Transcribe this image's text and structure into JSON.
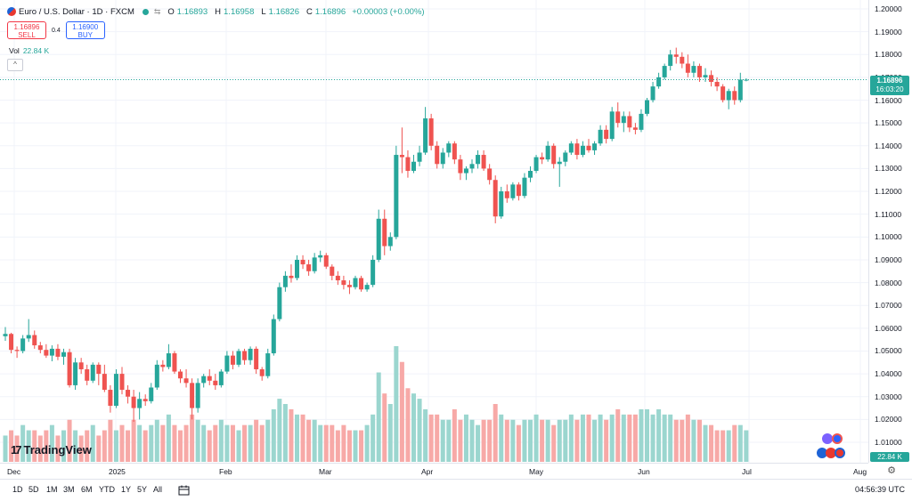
{
  "header": {
    "symbol_title": "Euro / U.S. Dollar · 1D · FXCM",
    "ohlc": [
      {
        "key": "O",
        "value": "1.16893"
      },
      {
        "key": "H",
        "value": "1.16958"
      },
      {
        "key": "L",
        "value": "1.16826"
      },
      {
        "key": "C",
        "value": "1.16896"
      }
    ],
    "change": "+0.00003 (+0.00%)",
    "alert_glyph": "⇆"
  },
  "trade": {
    "sell_price": "1.16896",
    "sell_label": "SELL",
    "spread": "0.4",
    "buy_price": "1.16900",
    "buy_label": "BUY"
  },
  "volume_legend": {
    "label": "Vol",
    "value": "22.84 K"
  },
  "collapse_glyph": "^",
  "logo": {
    "mark": "17",
    "text": "TradingView"
  },
  "price_axis": {
    "ticks": [
      "1.20000",
      "1.19000",
      "1.18000",
      "1.17000",
      "1.16000",
      "1.15000",
      "1.14000",
      "1.13000",
      "1.12000",
      "1.11000",
      "1.10000",
      "1.09000",
      "1.08000",
      "1.07000",
      "1.06000",
      "1.05000",
      "1.04000",
      "1.03000",
      "1.02000",
      "1.01000"
    ],
    "last_price": "1.16896",
    "countdown": "16:03:20",
    "volume_tag": "22.84 K"
  },
  "time_axis": {
    "labels": [
      "Dec",
      "2025",
      "Feb",
      "Mar",
      "Apr",
      "May",
      "Jun",
      "Jul",
      "Aug"
    ]
  },
  "bottom_bar": {
    "ranges": [
      "1D",
      "5D",
      "1M",
      "3M",
      "6M",
      "YTD",
      "1Y",
      "5Y",
      "All"
    ],
    "clock": "04:56:39 UTC",
    "settings_glyph": "⚙"
  },
  "colors": {
    "up": "#26a69a",
    "down": "#ef5350",
    "up_vol": "#9bd6cf",
    "down_vol": "#f7a9a7",
    "grid": "#f0f3fa"
  },
  "chart_data": {
    "type": "candlestick",
    "title": "Euro / U.S. Dollar · 1D · FXCM",
    "ylim": [
      1.005,
      1.2
    ],
    "candles_ohlc": [
      [
        1.0565,
        1.0605,
        1.0545,
        1.0575
      ],
      [
        1.0575,
        1.058,
        1.049,
        1.0505
      ],
      [
        1.0505,
        1.052,
        1.047,
        1.05
      ],
      [
        1.05,
        1.057,
        1.049,
        1.0555
      ],
      [
        1.0555,
        1.064,
        1.054,
        1.057
      ],
      [
        1.057,
        1.059,
        1.051,
        1.0525
      ],
      [
        1.0525,
        1.054,
        1.049,
        1.0505
      ],
      [
        1.0505,
        1.053,
        1.047,
        1.048
      ],
      [
        1.048,
        1.0525,
        1.0455,
        1.051
      ],
      [
        1.051,
        1.053,
        1.046,
        1.0475
      ],
      [
        1.0475,
        1.051,
        1.044,
        1.0495
      ],
      [
        1.0495,
        1.051,
        1.034,
        1.035
      ],
      [
        1.035,
        1.047,
        1.033,
        1.045
      ],
      [
        1.045,
        1.047,
        1.04,
        1.042
      ],
      [
        1.042,
        1.044,
        1.035,
        1.037
      ],
      [
        1.037,
        1.045,
        1.036,
        1.044
      ],
      [
        1.044,
        1.045,
        1.035,
        1.04
      ],
      [
        1.04,
        1.044,
        1.032,
        1.033
      ],
      [
        1.033,
        1.035,
        1.023,
        1.026
      ],
      [
        1.026,
        1.042,
        1.025,
        1.04
      ],
      [
        1.04,
        1.043,
        1.031,
        1.033
      ],
      [
        1.033,
        1.035,
        1.027,
        1.03
      ],
      [
        1.03,
        1.033,
        1.019,
        1.025
      ],
      [
        1.025,
        1.032,
        1.02,
        1.029
      ],
      [
        1.029,
        1.031,
        1.026,
        1.028
      ],
      [
        1.028,
        1.036,
        1.027,
        1.034
      ],
      [
        1.034,
        1.046,
        1.033,
        1.044
      ],
      [
        1.044,
        1.046,
        1.041,
        1.043
      ],
      [
        1.043,
        1.053,
        1.042,
        1.049
      ],
      [
        1.049,
        1.05,
        1.04,
        1.041
      ],
      [
        1.041,
        1.042,
        1.036,
        1.038
      ],
      [
        1.038,
        1.042,
        1.034,
        1.036
      ],
      [
        1.036,
        1.038,
        1.02,
        1.025
      ],
      [
        1.025,
        1.038,
        1.023,
        1.036
      ],
      [
        1.036,
        1.04,
        1.034,
        1.039
      ],
      [
        1.039,
        1.042,
        1.035,
        1.037
      ],
      [
        1.037,
        1.04,
        1.033,
        1.035
      ],
      [
        1.035,
        1.042,
        1.034,
        1.041
      ],
      [
        1.041,
        1.05,
        1.04,
        1.048
      ],
      [
        1.048,
        1.05,
        1.042,
        1.044
      ],
      [
        1.044,
        1.051,
        1.043,
        1.05
      ],
      [
        1.05,
        1.051,
        1.044,
        1.046
      ],
      [
        1.046,
        1.052,
        1.044,
        1.051
      ],
      [
        1.051,
        1.052,
        1.04,
        1.042
      ],
      [
        1.042,
        1.043,
        1.037,
        1.039
      ],
      [
        1.039,
        1.051,
        1.038,
        1.049
      ],
      [
        1.049,
        1.066,
        1.048,
        1.064
      ],
      [
        1.064,
        1.08,
        1.063,
        1.078
      ],
      [
        1.078,
        1.085,
        1.076,
        1.083
      ],
      [
        1.083,
        1.088,
        1.08,
        1.082
      ],
      [
        1.082,
        1.092,
        1.081,
        1.09
      ],
      [
        1.09,
        1.092,
        1.086,
        1.088
      ],
      [
        1.088,
        1.09,
        1.083,
        1.085
      ],
      [
        1.085,
        1.093,
        1.084,
        1.091
      ],
      [
        1.091,
        1.094,
        1.089,
        1.092
      ],
      [
        1.092,
        1.093,
        1.086,
        1.087
      ],
      [
        1.087,
        1.088,
        1.081,
        1.083
      ],
      [
        1.083,
        1.085,
        1.079,
        1.081
      ],
      [
        1.081,
        1.083,
        1.077,
        1.079
      ],
      [
        1.079,
        1.081,
        1.075,
        1.078
      ],
      [
        1.078,
        1.083,
        1.077,
        1.082
      ],
      [
        1.082,
        1.083,
        1.076,
        1.077
      ],
      [
        1.077,
        1.08,
        1.076,
        1.079
      ],
      [
        1.079,
        1.092,
        1.078,
        1.09
      ],
      [
        1.09,
        1.112,
        1.089,
        1.108
      ],
      [
        1.108,
        1.112,
        1.092,
        1.096
      ],
      [
        1.096,
        1.102,
        1.094,
        1.1
      ],
      [
        1.1,
        1.14,
        1.099,
        1.136
      ],
      [
        1.136,
        1.148,
        1.128,
        1.135
      ],
      [
        1.135,
        1.138,
        1.126,
        1.129
      ],
      [
        1.129,
        1.136,
        1.128,
        1.133
      ],
      [
        1.133,
        1.14,
        1.131,
        1.137
      ],
      [
        1.137,
        1.157,
        1.136,
        1.152
      ],
      [
        1.152,
        1.154,
        1.138,
        1.14
      ],
      [
        1.14,
        1.142,
        1.13,
        1.132
      ],
      [
        1.132,
        1.139,
        1.13,
        1.137
      ],
      [
        1.137,
        1.142,
        1.135,
        1.141
      ],
      [
        1.141,
        1.142,
        1.132,
        1.134
      ],
      [
        1.134,
        1.136,
        1.125,
        1.128
      ],
      [
        1.128,
        1.131,
        1.125,
        1.13
      ],
      [
        1.13,
        1.134,
        1.128,
        1.132
      ],
      [
        1.132,
        1.138,
        1.13,
        1.136
      ],
      [
        1.136,
        1.138,
        1.129,
        1.13
      ],
      [
        1.13,
        1.132,
        1.123,
        1.125
      ],
      [
        1.125,
        1.127,
        1.106,
        1.109
      ],
      [
        1.109,
        1.122,
        1.108,
        1.12
      ],
      [
        1.12,
        1.123,
        1.115,
        1.117
      ],
      [
        1.117,
        1.124,
        1.116,
        1.123
      ],
      [
        1.123,
        1.124,
        1.116,
        1.118
      ],
      [
        1.118,
        1.128,
        1.117,
        1.126
      ],
      [
        1.126,
        1.131,
        1.124,
        1.129
      ],
      [
        1.129,
        1.136,
        1.128,
        1.135
      ],
      [
        1.135,
        1.137,
        1.132,
        1.134
      ],
      [
        1.134,
        1.142,
        1.133,
        1.14
      ],
      [
        1.14,
        1.141,
        1.13,
        1.132
      ],
      [
        1.132,
        1.135,
        1.122,
        1.133
      ],
      [
        1.133,
        1.138,
        1.131,
        1.137
      ],
      [
        1.137,
        1.142,
        1.136,
        1.141
      ],
      [
        1.141,
        1.143,
        1.134,
        1.136
      ],
      [
        1.136,
        1.142,
        1.135,
        1.14
      ],
      [
        1.14,
        1.143,
        1.137,
        1.138
      ],
      [
        1.138,
        1.142,
        1.136,
        1.141
      ],
      [
        1.141,
        1.149,
        1.14,
        1.147
      ],
      [
        1.147,
        1.149,
        1.141,
        1.143
      ],
      [
        1.143,
        1.157,
        1.142,
        1.155
      ],
      [
        1.155,
        1.159,
        1.148,
        1.15
      ],
      [
        1.15,
        1.155,
        1.146,
        1.153
      ],
      [
        1.153,
        1.155,
        1.146,
        1.148
      ],
      [
        1.148,
        1.15,
        1.145,
        1.147
      ],
      [
        1.147,
        1.156,
        1.146,
        1.154
      ],
      [
        1.154,
        1.161,
        1.153,
        1.16
      ],
      [
        1.16,
        1.168,
        1.159,
        1.166
      ],
      [
        1.166,
        1.172,
        1.165,
        1.17
      ],
      [
        1.17,
        1.176,
        1.169,
        1.175
      ],
      [
        1.175,
        1.182,
        1.173,
        1.18
      ],
      [
        1.18,
        1.183,
        1.176,
        1.179
      ],
      [
        1.179,
        1.181,
        1.174,
        1.176
      ],
      [
        1.176,
        1.18,
        1.17,
        1.172
      ],
      [
        1.172,
        1.177,
        1.17,
        1.175
      ],
      [
        1.175,
        1.176,
        1.168,
        1.17
      ],
      [
        1.17,
        1.174,
        1.168,
        1.171
      ],
      [
        1.171,
        1.173,
        1.166,
        1.168
      ],
      [
        1.168,
        1.17,
        1.164,
        1.166
      ],
      [
        1.166,
        1.167,
        1.159,
        1.16
      ],
      [
        1.16,
        1.165,
        1.156,
        1.164
      ],
      [
        1.164,
        1.166,
        1.158,
        1.16
      ],
      [
        1.16,
        1.172,
        1.159,
        1.169
      ],
      [
        1.16893,
        1.16958,
        1.16826,
        1.16896
      ]
    ],
    "volume": [
      5,
      6,
      5,
      7,
      6,
      6,
      5,
      6,
      7,
      5,
      6,
      8,
      6,
      5,
      6,
      7,
      5,
      6,
      8,
      6,
      7,
      6,
      8,
      7,
      6,
      7,
      8,
      7,
      9,
      7,
      6,
      7,
      9,
      8,
      7,
      6,
      7,
      8,
      7,
      7,
      6,
      7,
      7,
      8,
      7,
      8,
      10,
      12,
      11,
      10,
      9,
      9,
      8,
      8,
      7,
      7,
      7,
      6,
      7,
      6,
      6,
      6,
      7,
      9,
      17,
      13,
      11,
      22,
      19,
      14,
      13,
      12,
      10,
      9,
      9,
      8,
      8,
      10,
      8,
      9,
      8,
      7,
      8,
      8,
      11,
      9,
      8,
      8,
      7,
      8,
      8,
      9,
      8,
      8,
      7,
      8,
      8,
      9,
      8,
      9,
      9,
      8,
      9,
      8,
      9,
      10,
      9,
      9,
      9,
      10,
      10,
      9,
      10,
      9,
      9,
      8,
      8,
      9,
      8,
      8,
      7,
      7,
      6,
      6,
      6,
      7,
      7,
      6,
      10,
      5
    ]
  }
}
